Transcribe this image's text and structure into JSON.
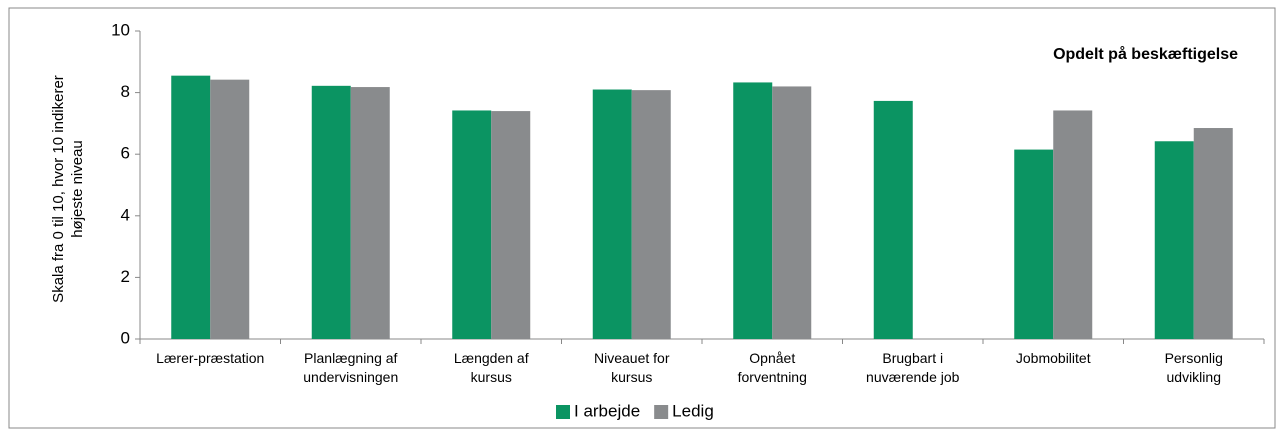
{
  "chart_data": {
    "type": "bar",
    "y_label": "Skala fra 0  til 10, hvor 10 indikerer\nhøjeste niveau",
    "annotation": "Opdelt på beskæftigelse",
    "categories": [
      "Lærer-præstation",
      "Planlægning af\nundervisningen",
      "Længden af\nkursus",
      "Niveauet for\nkursus",
      "Opnået\nforventning",
      "Brugbart i\nnuværende job",
      "Jobmobilitet",
      "Personlig\nudvikling"
    ],
    "series": [
      {
        "name": "I arbejde",
        "color": "#0b9462",
        "values": [
          8.55,
          8.22,
          7.42,
          8.1,
          8.33,
          7.73,
          6.15,
          6.42
        ]
      },
      {
        "name": "Ledig",
        "color": "#898b8d",
        "values": [
          8.42,
          8.18,
          7.4,
          8.08,
          8.2,
          null,
          7.42,
          6.85
        ]
      }
    ],
    "ylim": [
      0,
      10
    ],
    "yticks": [
      0,
      2,
      4,
      6,
      8,
      10
    ],
    "grid": false,
    "legend": "bottom"
  }
}
